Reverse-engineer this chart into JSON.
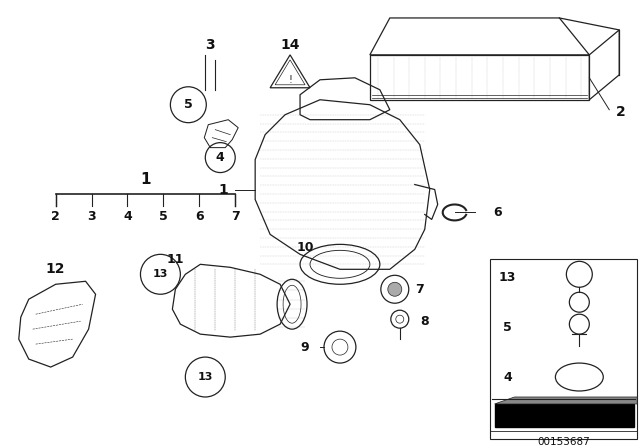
{
  "bg_color": "#ffffff",
  "part_number": "00153687",
  "line_color": "#222222",
  "label_color": "#111111",
  "figsize": [
    6.4,
    4.48
  ],
  "dpi": 100
}
